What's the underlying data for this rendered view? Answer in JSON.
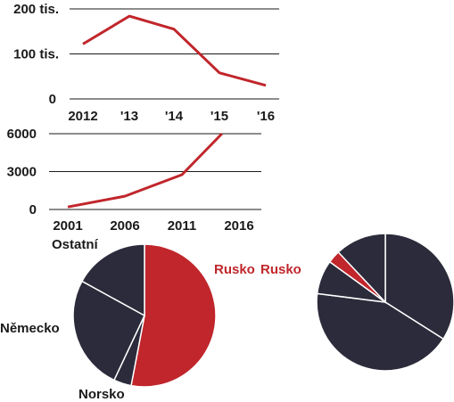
{
  "colors": {
    "accent": "#c0262b",
    "dark": "#2b2b3b",
    "text": "#1a1a1a"
  },
  "chart_data": [
    {
      "type": "line",
      "x": [
        "2012",
        "'13",
        "'14",
        "'15",
        "'16"
      ],
      "series": [
        {
          "values": [
            122000,
            184000,
            155000,
            58000,
            30000
          ]
        }
      ],
      "y_ticks": [
        "200 tis.",
        "100 tis.",
        "0"
      ],
      "y_tick_values": [
        200000,
        100000,
        0
      ],
      "ylim": [
        0,
        200000
      ],
      "grid": true
    },
    {
      "type": "line",
      "x": [
        "2001",
        "2006",
        "2011",
        "2016"
      ],
      "x_values": [
        2001,
        2006,
        2011,
        2016
      ],
      "series": [
        {
          "x": [
            2001,
            2006,
            2011,
            2014.5
          ],
          "values": [
            200,
            1050,
            2750,
            6000
          ]
        }
      ],
      "y_ticks": [
        "6000",
        "3000",
        "0"
      ],
      "y_tick_values": [
        6000,
        3000,
        0
      ],
      "ylim": [
        0,
        6000
      ],
      "grid": true
    },
    {
      "type": "pie",
      "slices": [
        {
          "label": "Rusko",
          "value": 53,
          "color": "#c0262b"
        },
        {
          "label": "Norsko",
          "value": 4,
          "color": "#2b2b3b"
        },
        {
          "label": "Německo",
          "value": 26,
          "color": "#2b2b3b"
        },
        {
          "label": "Ostatní",
          "value": 17,
          "color": "#2b2b3b"
        }
      ]
    },
    {
      "type": "pie",
      "slices": [
        {
          "label": "",
          "value": 34,
          "color": "#2b2b3b"
        },
        {
          "label": "",
          "value": 43,
          "color": "#2b2b3b"
        },
        {
          "label": "",
          "value": 8,
          "color": "#2b2b3b"
        },
        {
          "label": "Rusko",
          "value": 3,
          "color": "#c0262b"
        },
        {
          "label": "",
          "value": 12,
          "color": "#2b2b3b"
        }
      ]
    }
  ],
  "labels": {
    "rusko_left": "Rusko",
    "rusko_right": "Rusko",
    "nemecko": "Německo",
    "norsko": "Norsko",
    "ostatni": "Ostatní"
  }
}
